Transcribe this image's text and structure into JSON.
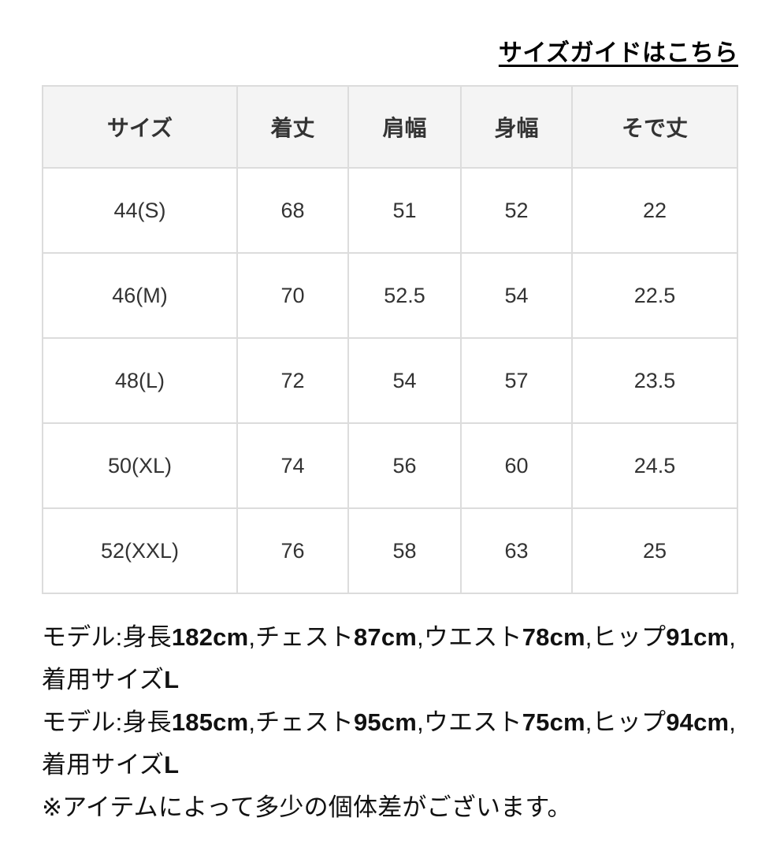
{
  "link": {
    "label": "サイズガイドはこちら"
  },
  "table": {
    "headers": [
      "サイズ",
      "着丈",
      "肩幅",
      "身幅",
      "そで丈"
    ],
    "rows": [
      [
        "44(S)",
        "68",
        "51",
        "52",
        "22"
      ],
      [
        "46(M)",
        "70",
        "52.5",
        "54",
        "22.5"
      ],
      [
        "48(L)",
        "72",
        "54",
        "57",
        "23.5"
      ],
      [
        "50(XL)",
        "74",
        "56",
        "60",
        "24.5"
      ],
      [
        "52(XXL)",
        "76",
        "58",
        "63",
        "25"
      ]
    ]
  },
  "notes": {
    "lines": [
      {
        "segments": [
          {
            "text": "モデル:身長",
            "bold": false
          },
          {
            "text": "182cm",
            "bold": true
          },
          {
            "text": ",チェスト",
            "bold": false
          },
          {
            "text": "87cm",
            "bold": true
          },
          {
            "text": ",ウエスト",
            "bold": false
          },
          {
            "text": "78cm",
            "bold": true
          },
          {
            "text": ",ヒップ",
            "bold": false
          },
          {
            "text": "91cm",
            "bold": true
          },
          {
            "text": ",着用サイズ",
            "bold": false
          },
          {
            "text": "L",
            "bold": true
          }
        ]
      },
      {
        "segments": [
          {
            "text": "モデル:身長",
            "bold": false
          },
          {
            "text": "185cm",
            "bold": true
          },
          {
            "text": ",チェスト",
            "bold": false
          },
          {
            "text": "95cm",
            "bold": true
          },
          {
            "text": ",ウエスト",
            "bold": false
          },
          {
            "text": "75cm",
            "bold": true
          },
          {
            "text": ",ヒップ",
            "bold": false
          },
          {
            "text": "94cm",
            "bold": true
          },
          {
            "text": ",着用サイズ",
            "bold": false
          },
          {
            "text": "L",
            "bold": true
          }
        ]
      },
      {
        "segments": [
          {
            "text": "※アイテムによって多少の個体差がございます。",
            "bold": false
          }
        ]
      }
    ]
  },
  "colors": {
    "header_bg": "#f4f4f4",
    "border": "#dcdcdc",
    "table_text": "#333333",
    "note_text": "#111111",
    "link_text": "#000000"
  }
}
